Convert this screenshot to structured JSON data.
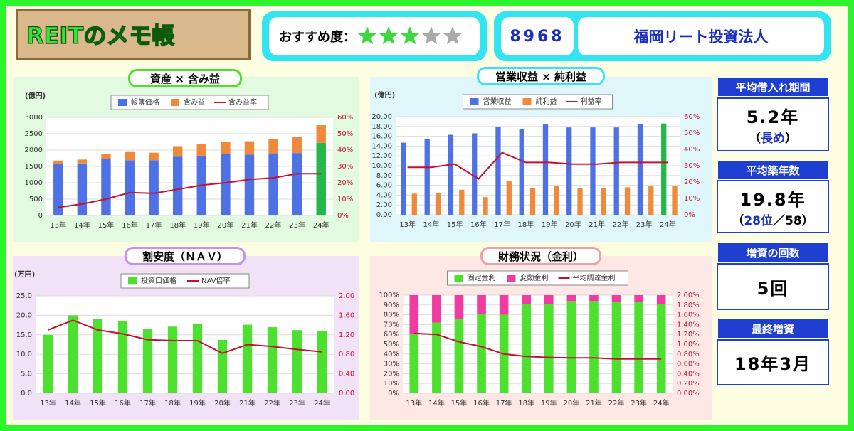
{
  "header": {
    "title": "REITのメモ帳",
    "rating_label": "おすすめ度：",
    "rating": 3,
    "rating_max": 5,
    "code": "8968",
    "name": "福岡リート投資法人"
  },
  "side": [
    {
      "label": "平均借入れ期間",
      "value": "5.2年",
      "note": [
        {
          "text": "（"
        },
        {
          "text": "長め",
          "em": true
        },
        {
          "text": "）"
        }
      ]
    },
    {
      "label": "平均築年数",
      "value": "19.8年",
      "note": [
        {
          "text": "（"
        },
        {
          "text": "28位",
          "em": true
        },
        {
          "text": "／58）"
        }
      ]
    },
    {
      "label": "増資の回数",
      "value": "5回"
    },
    {
      "label": "最終増資",
      "value": "18年3月"
    }
  ],
  "chart_data": [
    {
      "type": "bar",
      "mode": "stacked",
      "title": "資産 × 含み益",
      "y_unit": "(億円)",
      "categories": [
        "13年",
        "14年",
        "15年",
        "16年",
        "17年",
        "18年",
        "19年",
        "20年",
        "21年",
        "22年",
        "23年",
        "24年"
      ],
      "highlight": {
        "index": 11,
        "color": "#22b84a"
      },
      "series": [
        {
          "name": "帳簿価格",
          "color": "#4e72e6",
          "values": [
            1580,
            1590,
            1720,
            1690,
            1690,
            1800,
            1830,
            1870,
            1860,
            1900,
            1910,
            2220
          ]
        },
        {
          "name": "含み益",
          "color": "#ef8a3c",
          "values": [
            100,
            120,
            170,
            250,
            230,
            320,
            350,
            390,
            410,
            440,
            490,
            540
          ]
        },
        {
          "name": "含み益率",
          "type": "line",
          "axis": "y2",
          "color": "#c8102e",
          "values": [
            5,
            7,
            10,
            14,
            13.5,
            16,
            18.5,
            20,
            22,
            23,
            25.5,
            25.5
          ]
        }
      ],
      "ylim": [
        0,
        3000
      ],
      "yticks": [
        0,
        500,
        1000,
        1500,
        2000,
        2500,
        3000
      ],
      "y2lim": [
        0,
        60
      ],
      "y2ticks": [
        {
          "value": 0,
          "label": "0%"
        },
        {
          "value": 10,
          "label": "10%"
        },
        {
          "value": 20,
          "label": "20%"
        },
        {
          "value": 30,
          "label": "30%"
        },
        {
          "value": 40,
          "label": "40%"
        },
        {
          "value": 50,
          "label": "50%"
        },
        {
          "value": 60,
          "label": "60%"
        }
      ],
      "grid": true
    },
    {
      "type": "bar",
      "mode": "grouped",
      "title": "営業収益 × 純利益",
      "y_unit": "(億円)",
      "categories": [
        "13年",
        "14年",
        "15年",
        "16年",
        "17年",
        "18年",
        "19年",
        "20年",
        "21年",
        "22年",
        "23年",
        "24年"
      ],
      "highlight": {
        "index": 11,
        "color": "#22b84a"
      },
      "series": [
        {
          "name": "営業収益",
          "color": "#4e72e6",
          "values": [
            14.7,
            15.4,
            16.3,
            16.6,
            17.9,
            17.5,
            18.4,
            17.8,
            17.8,
            17.8,
            18.4,
            18.6
          ]
        },
        {
          "name": "純利益",
          "color": "#ef8a3c",
          "values": [
            4.3,
            4.4,
            5.1,
            3.6,
            6.8,
            5.5,
            5.9,
            5.5,
            5.5,
            5.6,
            5.9,
            5.9
          ]
        },
        {
          "name": "利益率",
          "type": "line",
          "axis": "y2",
          "color": "#c8102e",
          "values": [
            29,
            29,
            31,
            22,
            38,
            32,
            32,
            31,
            31,
            32,
            32,
            32
          ]
        }
      ],
      "ylim": [
        0,
        20
      ],
      "yticks": [
        {
          "value": 0,
          "label": "0.00"
        },
        {
          "value": 2,
          "label": "2.00"
        },
        {
          "value": 4,
          "label": "4.00"
        },
        {
          "value": 6,
          "label": "6.00"
        },
        {
          "value": 8,
          "label": "8.00"
        },
        {
          "value": 10,
          "label": "10.00"
        },
        {
          "value": 12,
          "label": "12.00"
        },
        {
          "value": 14,
          "label": "14.00"
        },
        {
          "value": 16,
          "label": "16.00"
        },
        {
          "value": 18,
          "label": "18.00"
        },
        {
          "value": 20,
          "label": "20.00"
        }
      ],
      "y2lim": [
        0,
        60
      ],
      "y2ticks": [
        {
          "value": 0,
          "label": "0%"
        },
        {
          "value": 10,
          "label": "10%"
        },
        {
          "value": 20,
          "label": "20%"
        },
        {
          "value": 30,
          "label": "30%"
        },
        {
          "value": 40,
          "label": "40%"
        },
        {
          "value": 50,
          "label": "50%"
        },
        {
          "value": 60,
          "label": "60%"
        }
      ],
      "grid": true
    },
    {
      "type": "bar",
      "title": "割安度（ＮＡＶ）",
      "y_unit": "(万円)",
      "categories": [
        "13年",
        "14年",
        "15年",
        "16年",
        "17年",
        "18年",
        "19年",
        "20年",
        "21年",
        "22年",
        "23年",
        "24年"
      ],
      "series": [
        {
          "name": "投資口価格",
          "color": "#4ee02e",
          "values": [
            15.0,
            20.0,
            19.0,
            18.6,
            16.5,
            17.1,
            17.9,
            13.7,
            17.6,
            17.0,
            16.2,
            15.9
          ]
        },
        {
          "name": "NAV倍率",
          "type": "line",
          "axis": "y2",
          "color": "#c8102e",
          "values": [
            1.3,
            1.5,
            1.3,
            1.22,
            1.1,
            1.08,
            1.08,
            0.82,
            1.0,
            0.96,
            0.9,
            0.85
          ]
        }
      ],
      "ylim": [
        0,
        25
      ],
      "yticks": [
        {
          "value": 0,
          "label": "0.0"
        },
        {
          "value": 5,
          "label": "5.0"
        },
        {
          "value": 10,
          "label": "10.0"
        },
        {
          "value": 15,
          "label": "15.0"
        },
        {
          "value": 20,
          "label": "20.0"
        },
        {
          "value": 25,
          "label": "25.0"
        }
      ],
      "y2lim": [
        0,
        2
      ],
      "y2ticks": [
        {
          "value": 0,
          "label": "0.00"
        },
        {
          "value": 0.4,
          "label": "0.40"
        },
        {
          "value": 0.8,
          "label": "0.80"
        },
        {
          "value": 1.2,
          "label": "1.20"
        },
        {
          "value": 1.6,
          "label": "1.60"
        },
        {
          "value": 2,
          "label": "2.00"
        }
      ],
      "grid": true
    },
    {
      "type": "bar",
      "mode": "stacked",
      "title": "財務状況（金利）",
      "categories": [
        "13年",
        "14年",
        "15年",
        "16年",
        "17年",
        "18年",
        "19年",
        "20年",
        "21年",
        "22年",
        "23年",
        "24年"
      ],
      "series": [
        {
          "name": "固定金利",
          "color": "#4ee02e",
          "values": [
            60,
            72,
            76,
            81,
            80,
            91,
            91,
            94,
            94,
            93,
            93,
            91
          ]
        },
        {
          "name": "変動金利",
          "color": "#f03ca0",
          "values": [
            40,
            28,
            24,
            19,
            20,
            9,
            9,
            6,
            6,
            7,
            7,
            9
          ]
        },
        {
          "name": "平均調達金利",
          "type": "line",
          "axis": "y2",
          "color": "#c8102e",
          "values": [
            1.22,
            1.2,
            1.05,
            0.95,
            0.8,
            0.75,
            0.73,
            0.72,
            0.72,
            0.7,
            0.7,
            0.7
          ]
        }
      ],
      "ylim": [
        0,
        100
      ],
      "yticks": [
        {
          "value": 0,
          "label": "0%"
        },
        {
          "value": 10,
          "label": "10%"
        },
        {
          "value": 20,
          "label": "20%"
        },
        {
          "value": 30,
          "label": "30%"
        },
        {
          "value": 40,
          "label": "40%"
        },
        {
          "value": 50,
          "label": "50%"
        },
        {
          "value": 60,
          "label": "60%"
        },
        {
          "value": 70,
          "label": "70%"
        },
        {
          "value": 80,
          "label": "80%"
        },
        {
          "value": 90,
          "label": "90%"
        },
        {
          "value": 100,
          "label": "100%"
        }
      ],
      "y2lim": [
        0,
        2
      ],
      "y2ticks": [
        {
          "value": 0,
          "label": "0.00%"
        },
        {
          "value": 0.2,
          "label": "0.20%"
        },
        {
          "value": 0.4,
          "label": "0.40%"
        },
        {
          "value": 0.6,
          "label": "0.60%"
        },
        {
          "value": 0.8,
          "label": "0.80%"
        },
        {
          "value": 1,
          "label": "1.00%"
        },
        {
          "value": 1.2,
          "label": "1.20%"
        },
        {
          "value": 1.4,
          "label": "1.40%"
        },
        {
          "value": 1.6,
          "label": "1.60%"
        },
        {
          "value": 1.8,
          "label": "1.80%"
        },
        {
          "value": 2,
          "label": "2.00%"
        }
      ],
      "grid": true
    }
  ]
}
